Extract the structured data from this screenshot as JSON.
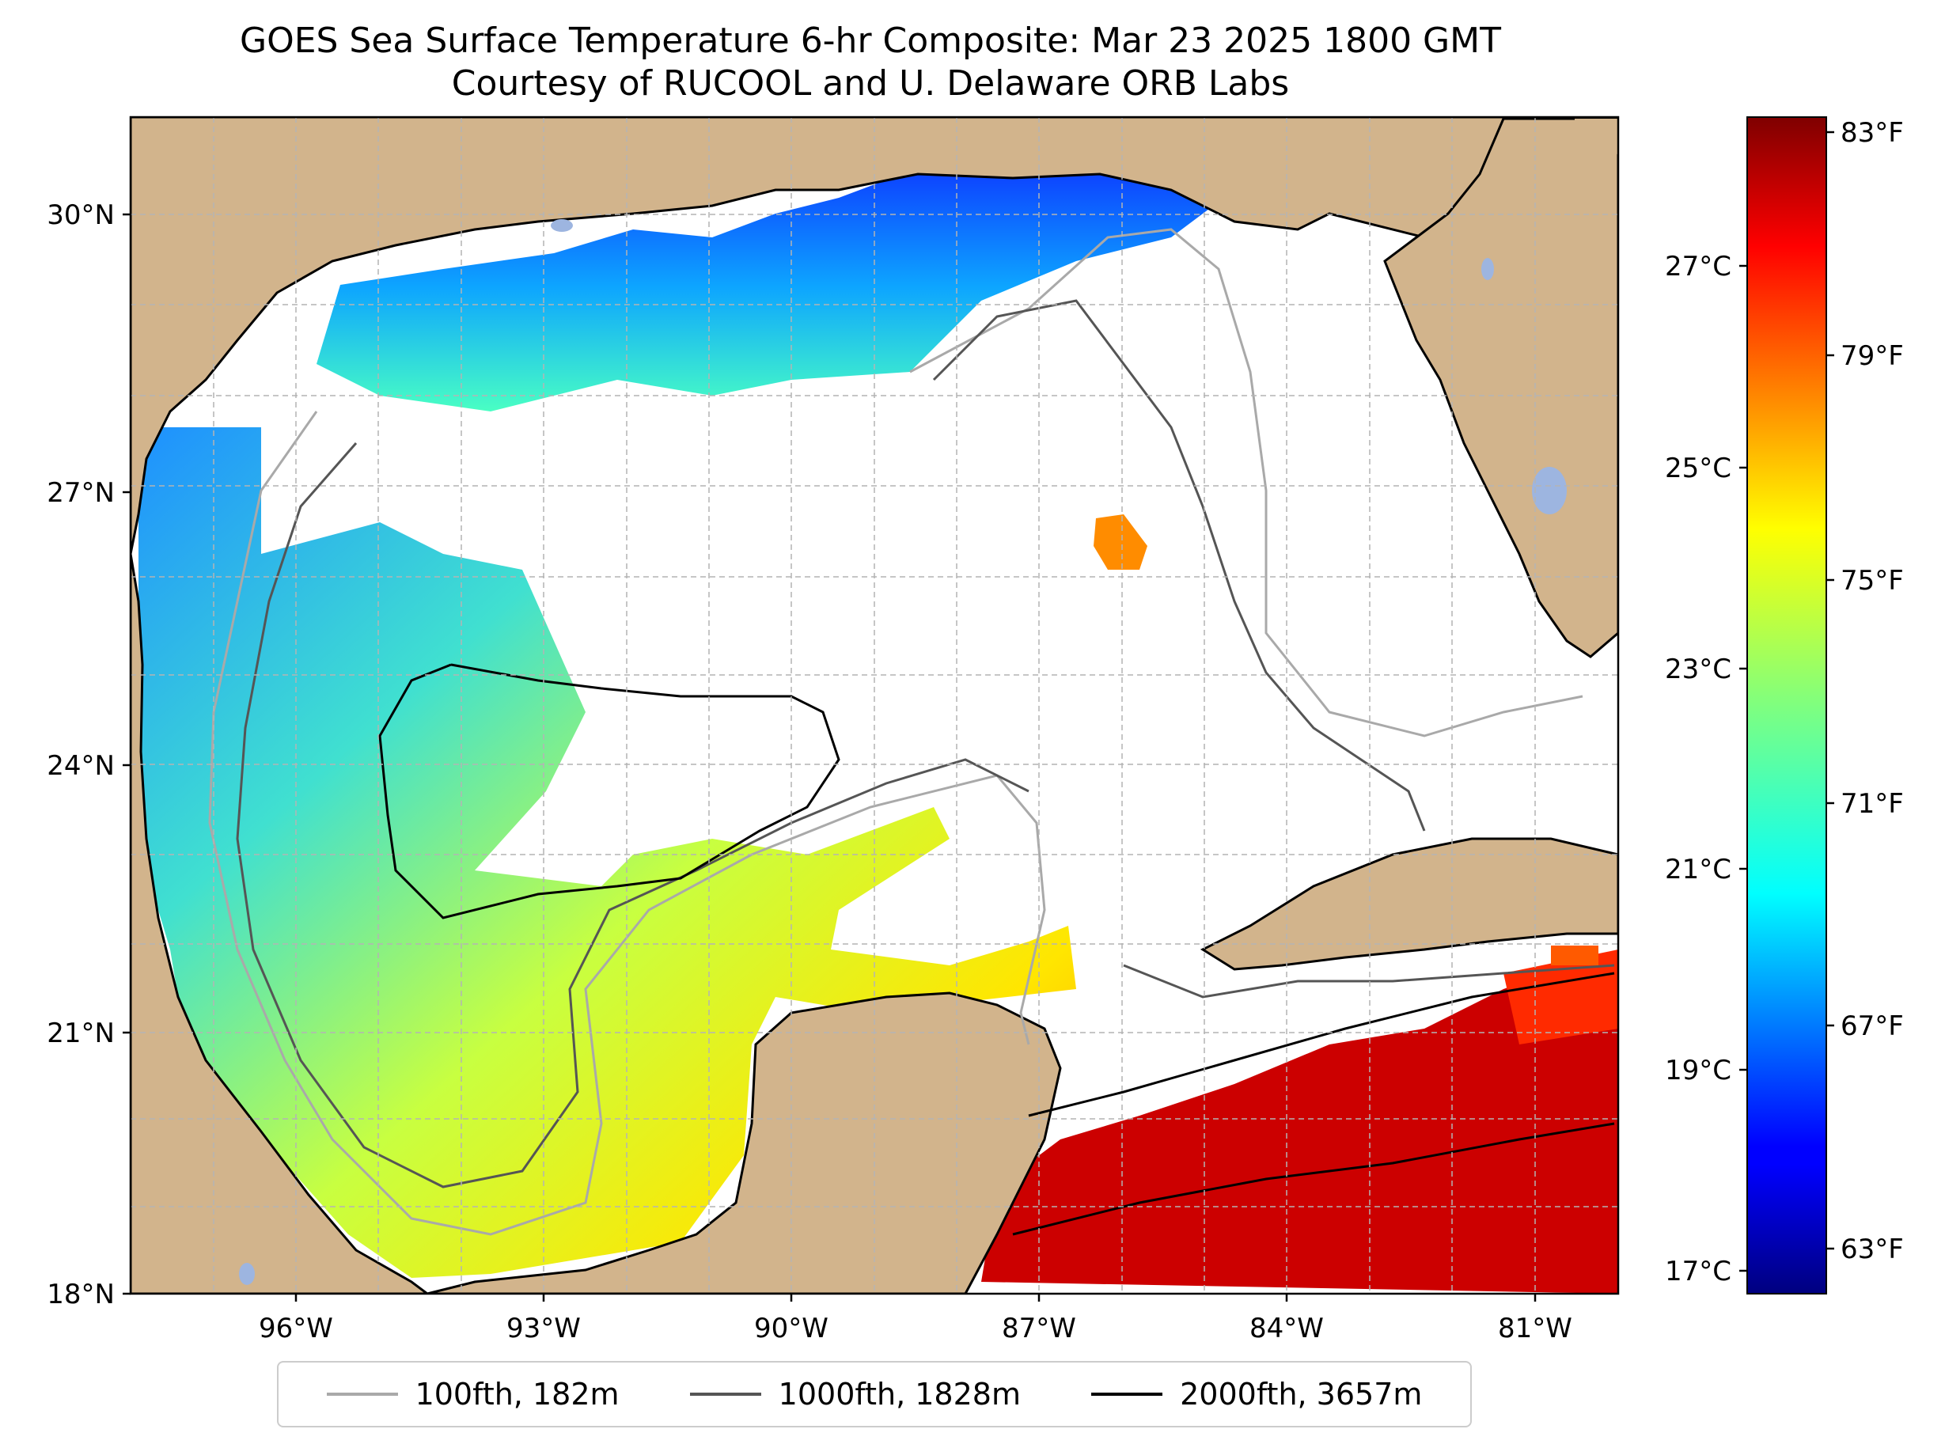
{
  "title": "GOES Sea Surface Temperature 6-hr Composite: Mar 23 2025 1800 GMT",
  "subtitle": "Courtesy of RUCOOL and U. Delaware ORB Labs",
  "map": {
    "lat_labels": [
      "30°N",
      "27°N",
      "24°N",
      "21°N",
      "18°N"
    ],
    "lon_labels": [
      "96°W",
      "93°W",
      "90°W",
      "87°W",
      "84°W",
      "81°W"
    ],
    "extent": {
      "lon_min": -98,
      "lon_max": -80,
      "lat_min": 18,
      "lat_max": 31
    },
    "colors": {
      "land": "#d2b48c",
      "lakes": "#9db5e0",
      "no_data": "#ffffff"
    }
  },
  "colorbar": {
    "celsius_labels": [
      "27°C",
      "25°C",
      "23°C",
      "21°C",
      "19°C",
      "17°C"
    ],
    "fahrenheit_labels": [
      "83°F",
      "79°F",
      "75°F",
      "71°F",
      "67°F",
      "63°F"
    ],
    "colormap": "jet"
  },
  "legend": [
    {
      "label": "100fth, 182m",
      "color": "#a9a9a9"
    },
    {
      "label": "1000fth, 1828m",
      "color": "#555555"
    },
    {
      "label": "2000fth, 3657m",
      "color": "#000000"
    }
  ]
}
